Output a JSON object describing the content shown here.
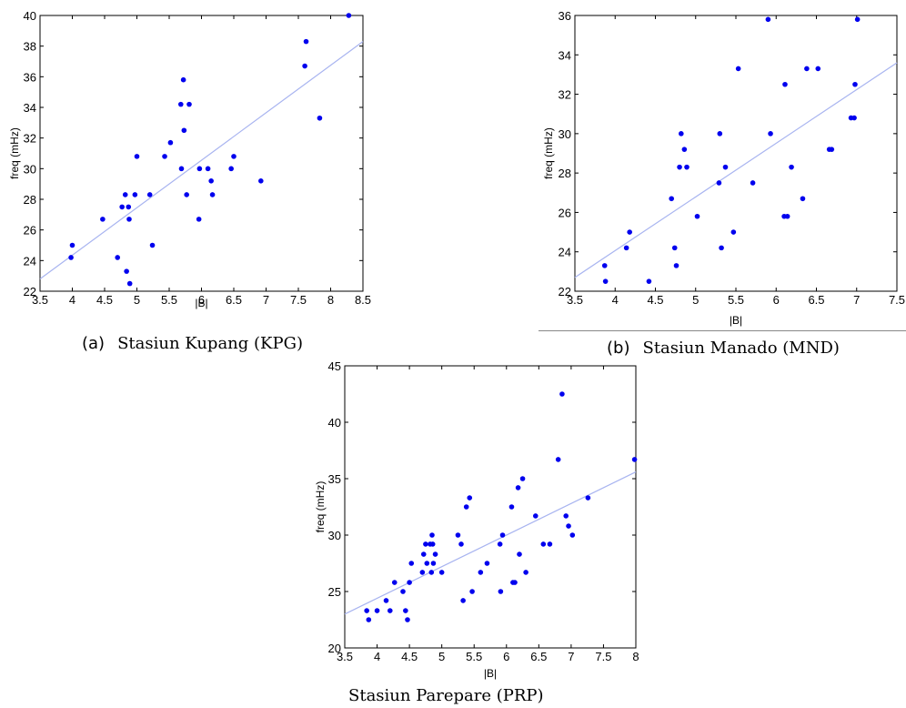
{
  "charts": [
    {
      "caption_letter": "(a)",
      "caption_text": "Stasiun Kupang (KPG)",
      "chart_data": {
        "type": "scatter",
        "xlabel": "|B|",
        "ylabel": "freq (mHz)",
        "xlim": [
          3.5,
          8.5
        ],
        "ylim": [
          22,
          40
        ],
        "xticks": [
          "3.5",
          "4",
          "4.5",
          "5",
          "5.5",
          "6",
          "6.5",
          "7",
          "7.5",
          "8",
          "8.5"
        ],
        "yticks": [
          "22",
          "24",
          "26",
          "28",
          "30",
          "32",
          "34",
          "36",
          "38",
          "40"
        ],
        "trend_line": {
          "x": [
            3.5,
            8.5
          ],
          "y": [
            22.8,
            38.3
          ]
        },
        "x": [
          3.98,
          4.0,
          4.47,
          4.7,
          4.77,
          4.82,
          4.84,
          4.87,
          4.88,
          4.89,
          4.97,
          5.0,
          5.2,
          5.24,
          5.43,
          5.52,
          5.68,
          5.69,
          5.72,
          5.73,
          5.77,
          5.81,
          5.96,
          5.97,
          6.1,
          6.15,
          6.17,
          6.46,
          6.5,
          6.92,
          7.6,
          7.62,
          7.83,
          8.28
        ],
        "y": [
          24.2,
          25.0,
          26.7,
          24.2,
          27.5,
          28.3,
          23.3,
          27.5,
          26.7,
          22.5,
          28.3,
          30.8,
          28.3,
          25.0,
          30.8,
          31.7,
          34.2,
          30.0,
          35.8,
          32.5,
          28.3,
          34.2,
          26.7,
          30.0,
          30.0,
          29.2,
          28.3,
          30.0,
          30.8,
          29.2,
          36.7,
          38.3,
          33.3,
          40.0
        ]
      }
    },
    {
      "caption_letter": "(b)",
      "caption_text": "Stasiun Manado (MND)",
      "chart_data": {
        "type": "scatter",
        "xlabel": "|B|",
        "ylabel": "freq (mHz)",
        "xlim": [
          3.5,
          7.5
        ],
        "ylim": [
          22,
          36
        ],
        "xticks": [
          "3.5",
          "4",
          "4.5",
          "5",
          "5.5",
          "6",
          "6.5",
          "7",
          "7.5"
        ],
        "yticks": [
          "22",
          "24",
          "26",
          "28",
          "30",
          "32",
          "34",
          "36"
        ],
        "trend_line": {
          "x": [
            3.5,
            7.5
          ],
          "y": [
            22.7,
            33.6
          ]
        },
        "x": [
          3.87,
          3.88,
          4.14,
          4.18,
          4.42,
          4.7,
          4.74,
          4.76,
          4.8,
          4.82,
          4.86,
          4.89,
          5.02,
          5.29,
          5.3,
          5.32,
          5.37,
          5.47,
          5.53,
          5.71,
          5.9,
          5.93,
          6.1,
          6.11,
          6.14,
          6.19,
          6.33,
          6.38,
          6.52,
          6.66,
          6.69,
          6.93,
          6.97,
          6.98,
          7.01
        ],
        "y": [
          23.3,
          22.5,
          24.2,
          25.0,
          22.5,
          26.7,
          24.2,
          23.3,
          28.3,
          30.0,
          29.2,
          28.3,
          25.8,
          27.5,
          30.0,
          24.2,
          28.3,
          25.0,
          33.3,
          27.5,
          35.8,
          30.0,
          25.8,
          32.5,
          25.8,
          28.3,
          26.7,
          33.3,
          33.3,
          29.2,
          29.2,
          30.8,
          30.8,
          32.5,
          35.8
        ]
      }
    },
    {
      "caption_letter": "",
      "caption_text": "Stasiun Parepare (PRP)",
      "chart_data": {
        "type": "scatter",
        "xlabel": "|B|",
        "ylabel": "freq (mHz)",
        "xlim": [
          3.5,
          8
        ],
        "ylim": [
          20,
          45
        ],
        "xticks": [
          "3.5",
          "4",
          "4.5",
          "5",
          "5.5",
          "6",
          "6.5",
          "7",
          "7.5",
          "8"
        ],
        "yticks": [
          "20",
          "25",
          "30",
          "35",
          "40",
          "45"
        ],
        "trend_line": {
          "x": [
            3.5,
            8
          ],
          "y": [
            23.0,
            35.6
          ]
        },
        "x": [
          3.84,
          3.87,
          4.0,
          4.14,
          4.2,
          4.27,
          4.4,
          4.44,
          4.47,
          4.5,
          4.53,
          4.7,
          4.72,
          4.75,
          4.77,
          4.82,
          4.84,
          4.85,
          4.86,
          4.87,
          4.9,
          5.0,
          5.25,
          5.3,
          5.33,
          5.38,
          5.43,
          5.47,
          5.6,
          5.7,
          5.9,
          5.91,
          5.94,
          6.08,
          6.1,
          6.13,
          6.18,
          6.2,
          6.25,
          6.3,
          6.45,
          6.57,
          6.67,
          6.8,
          6.86,
          6.92,
          6.96,
          7.02,
          7.26,
          7.98
        ],
        "y": [
          23.3,
          22.5,
          23.3,
          24.2,
          23.3,
          25.8,
          25.0,
          23.3,
          22.5,
          25.8,
          27.5,
          26.7,
          28.3,
          29.2,
          27.5,
          29.2,
          26.7,
          30.0,
          29.2,
          27.5,
          28.3,
          26.7,
          30.0,
          29.2,
          24.2,
          32.5,
          33.3,
          25.0,
          26.7,
          27.5,
          29.2,
          25.0,
          30.0,
          32.5,
          25.8,
          25.8,
          34.2,
          28.3,
          35.0,
          26.7,
          31.7,
          29.2,
          29.2,
          36.7,
          42.5,
          31.7,
          30.8,
          30.0,
          33.3,
          36.7
        ]
      }
    }
  ]
}
